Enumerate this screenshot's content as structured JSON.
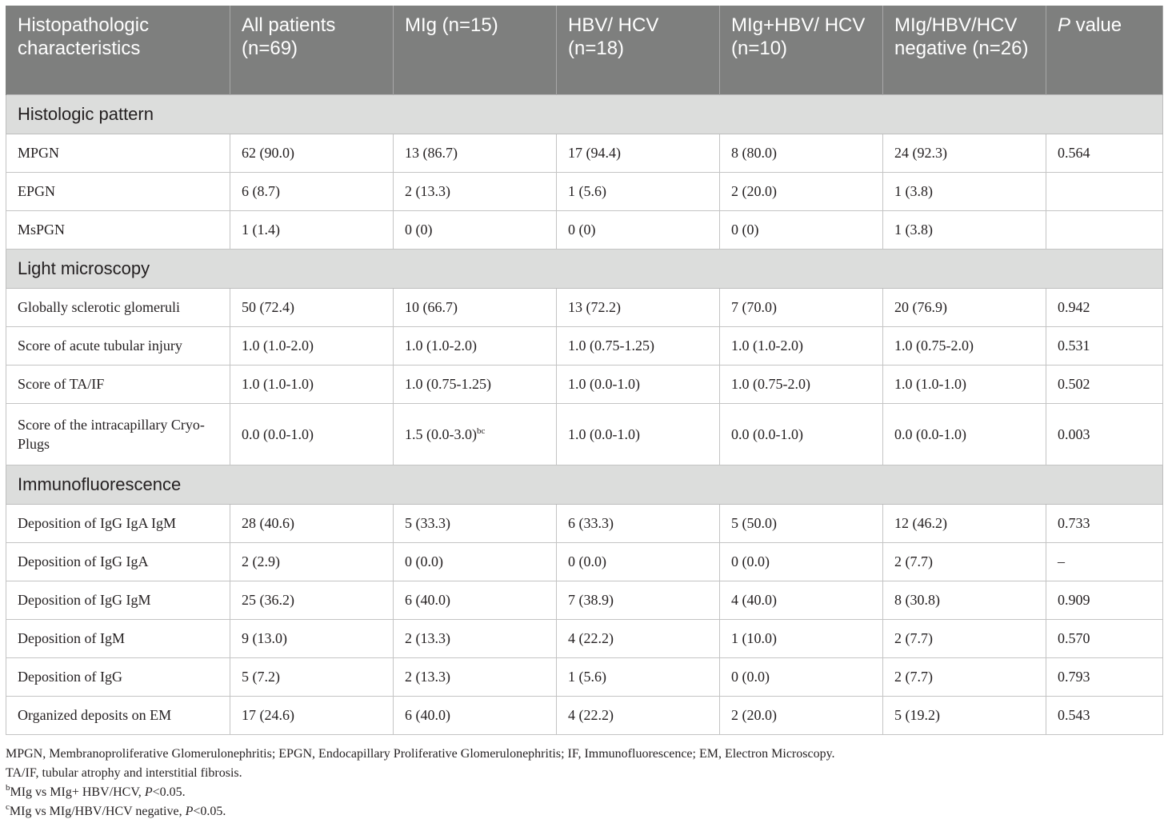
{
  "header": {
    "col0": "Histopathologic characteristics",
    "col1": "All patients (n=69)",
    "col2": "MIg (n=15)",
    "col3": "HBV/ HCV (n=18)",
    "col4": "MIg+HBV/ HCV (n=10)",
    "col5": "MIg/HBV/HCV negative (n=26)",
    "col6_italic": "P",
    "col6_rest": " value"
  },
  "sections": {
    "histologic": {
      "title": "Histologic pattern",
      "rows": [
        {
          "label": "MPGN",
          "all": "62 (90.0)",
          "mig": "13 (86.7)",
          "hbv": "17 (94.4)",
          "mighbv": "8 (80.0)",
          "neg": "24 (92.3)",
          "p": "0.564"
        },
        {
          "label": "EPGN",
          "all": "6 (8.7)",
          "mig": "2 (13.3)",
          "hbv": "1 (5.6)",
          "mighbv": "2 (20.0)",
          "neg": "1 (3.8)",
          "p": ""
        },
        {
          "label": "MsPGN",
          "all": "1 (1.4)",
          "mig": "0 (0)",
          "hbv": "0 (0)",
          "mighbv": "0 (0)",
          "neg": "1 (3.8)",
          "p": ""
        }
      ]
    },
    "light": {
      "title": "Light microscopy",
      "rows": [
        {
          "label": "Globally sclerotic glomeruli",
          "all": "50 (72.4)",
          "mig": "10 (66.7)",
          "hbv": "13 (72.2)",
          "mighbv": "7 (70.0)",
          "neg": "20 (76.9)",
          "p": "0.942"
        },
        {
          "label": "Score of acute tubular injury",
          "all": "1.0 (1.0-2.0)",
          "mig": "1.0 (1.0-2.0)",
          "hbv": "1.0 (0.75-1.25)",
          "mighbv": "1.0 (1.0-2.0)",
          "neg": "1.0 (0.75-2.0)",
          "p": "0.531"
        },
        {
          "label": "Score of TA/IF",
          "all": "1.0 (1.0-1.0)",
          "mig": "1.0 (0.75-1.25)",
          "hbv": "1.0 (0.0-1.0)",
          "mighbv": "1.0 (0.75-2.0)",
          "neg": "1.0 (1.0-1.0)",
          "p": "0.502"
        },
        {
          "label": "Score of the intracapillary Cryo-Plugs",
          "all": "0.0 (0.0-1.0)",
          "mig": "1.5 (0.0-3.0)",
          "mig_sup": "bc",
          "hbv": "1.0 (0.0-1.0)",
          "mighbv": "0.0 (0.0-1.0)",
          "neg": "0.0 (0.0-1.0)",
          "p": "0.003"
        }
      ]
    },
    "immuno": {
      "title": "Immunofluorescence",
      "rows": [
        {
          "label": "Deposition of IgG IgA IgM",
          "all": "28 (40.6)",
          "mig": "5 (33.3)",
          "hbv": "6 (33.3)",
          "mighbv": "5 (50.0)",
          "neg": "12 (46.2)",
          "p": "0.733"
        },
        {
          "label": "Deposition of IgG IgA",
          "all": "2 (2.9)",
          "mig": "0 (0.0)",
          "hbv": "0 (0.0)",
          "mighbv": "0 (0.0)",
          "neg": "2 (7.7)",
          "p": "–"
        },
        {
          "label": "Deposition of IgG IgM",
          "all": "25 (36.2)",
          "mig": "6 (40.0)",
          "hbv": "7 (38.9)",
          "mighbv": "4 (40.0)",
          "neg": "8 (30.8)",
          "p": "0.909"
        },
        {
          "label": "Deposition of IgM",
          "all": "9 (13.0)",
          "mig": "2 (13.3)",
          "hbv": "4 (22.2)",
          "mighbv": "1 (10.0)",
          "neg": "2 (7.7)",
          "p": "0.570"
        },
        {
          "label": "Deposition of IgG",
          "all": "5 (7.2)",
          "mig": "2 (13.3)",
          "hbv": "1 (5.6)",
          "mighbv": "0 (0.0)",
          "neg": "2 (7.7)",
          "p": "0.793"
        },
        {
          "label": "Organized deposits on EM",
          "all": "17 (24.6)",
          "mig": "6 (40.0)",
          "hbv": "4 (22.2)",
          "mighbv": "2 (20.0)",
          "neg": "5 (19.2)",
          "p": "0.543"
        }
      ]
    }
  },
  "footnotes": {
    "abbrev1": "MPGN, Membranoproliferative Glomerulonephritis; EPGN, Endocapillary Proliferative Glomerulonephritis; IF, Immunofluorescence; EM, Electron Microscopy.",
    "abbrev2": "TA/IF, tubular atrophy and interstitial fibrosis.",
    "b_sup": "b",
    "b_text": "MIg vs MIg+ HBV/HCV, ",
    "b_p": "P",
    "b_tail": "<0.05.",
    "c_sup": "c",
    "c_text": "MIg vs MIg/HBV/HCV negative, ",
    "c_p": "P",
    "c_tail": "<0.05."
  },
  "colors": {
    "header_bg": "#7e7f7e",
    "section_bg": "#dcdddc",
    "border": "#c4c4c4"
  }
}
